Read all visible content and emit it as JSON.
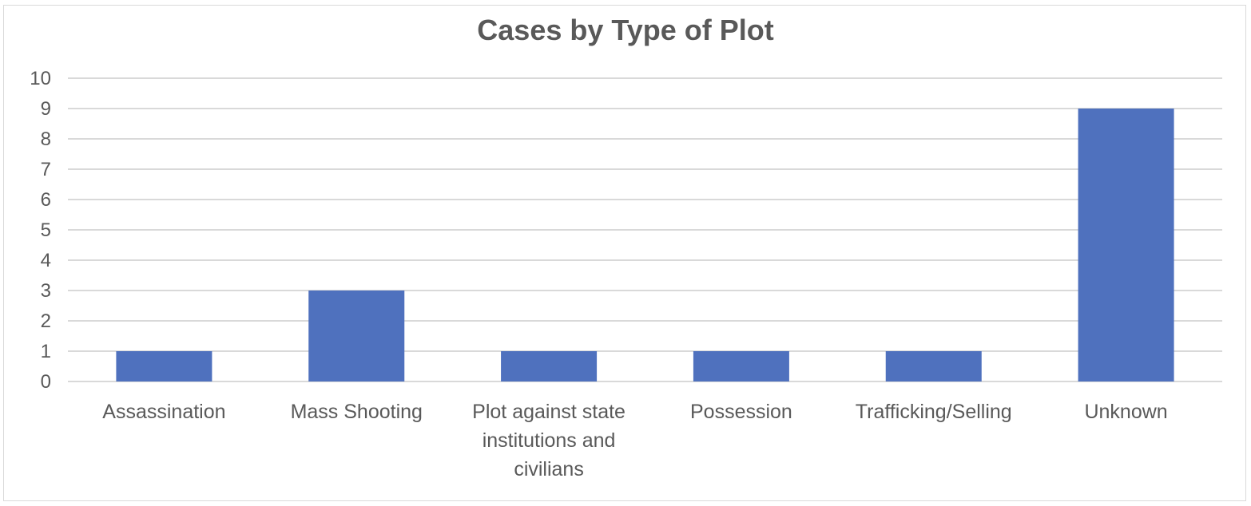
{
  "chart_data": {
    "type": "bar",
    "title": "Cases by Type of Plot",
    "xlabel": "",
    "ylabel": "",
    "categories": [
      [
        "Assassination"
      ],
      [
        "Mass Shooting"
      ],
      [
        "Plot against state",
        "institutions and",
        "civilians"
      ],
      [
        "Possession"
      ],
      [
        "Trafficking/Selling"
      ],
      [
        "Unknown"
      ]
    ],
    "values": [
      1,
      3,
      1,
      1,
      1,
      9
    ],
    "ylim": [
      0,
      10
    ],
    "yticks": [
      "0",
      "1",
      "2",
      "3",
      "4",
      "5",
      "6",
      "7",
      "8",
      "9",
      "10"
    ],
    "grid": true,
    "legend": "none",
    "colors": {
      "bar": "#4f71be",
      "grid": "#d9d9d9",
      "text": "#595959"
    }
  }
}
